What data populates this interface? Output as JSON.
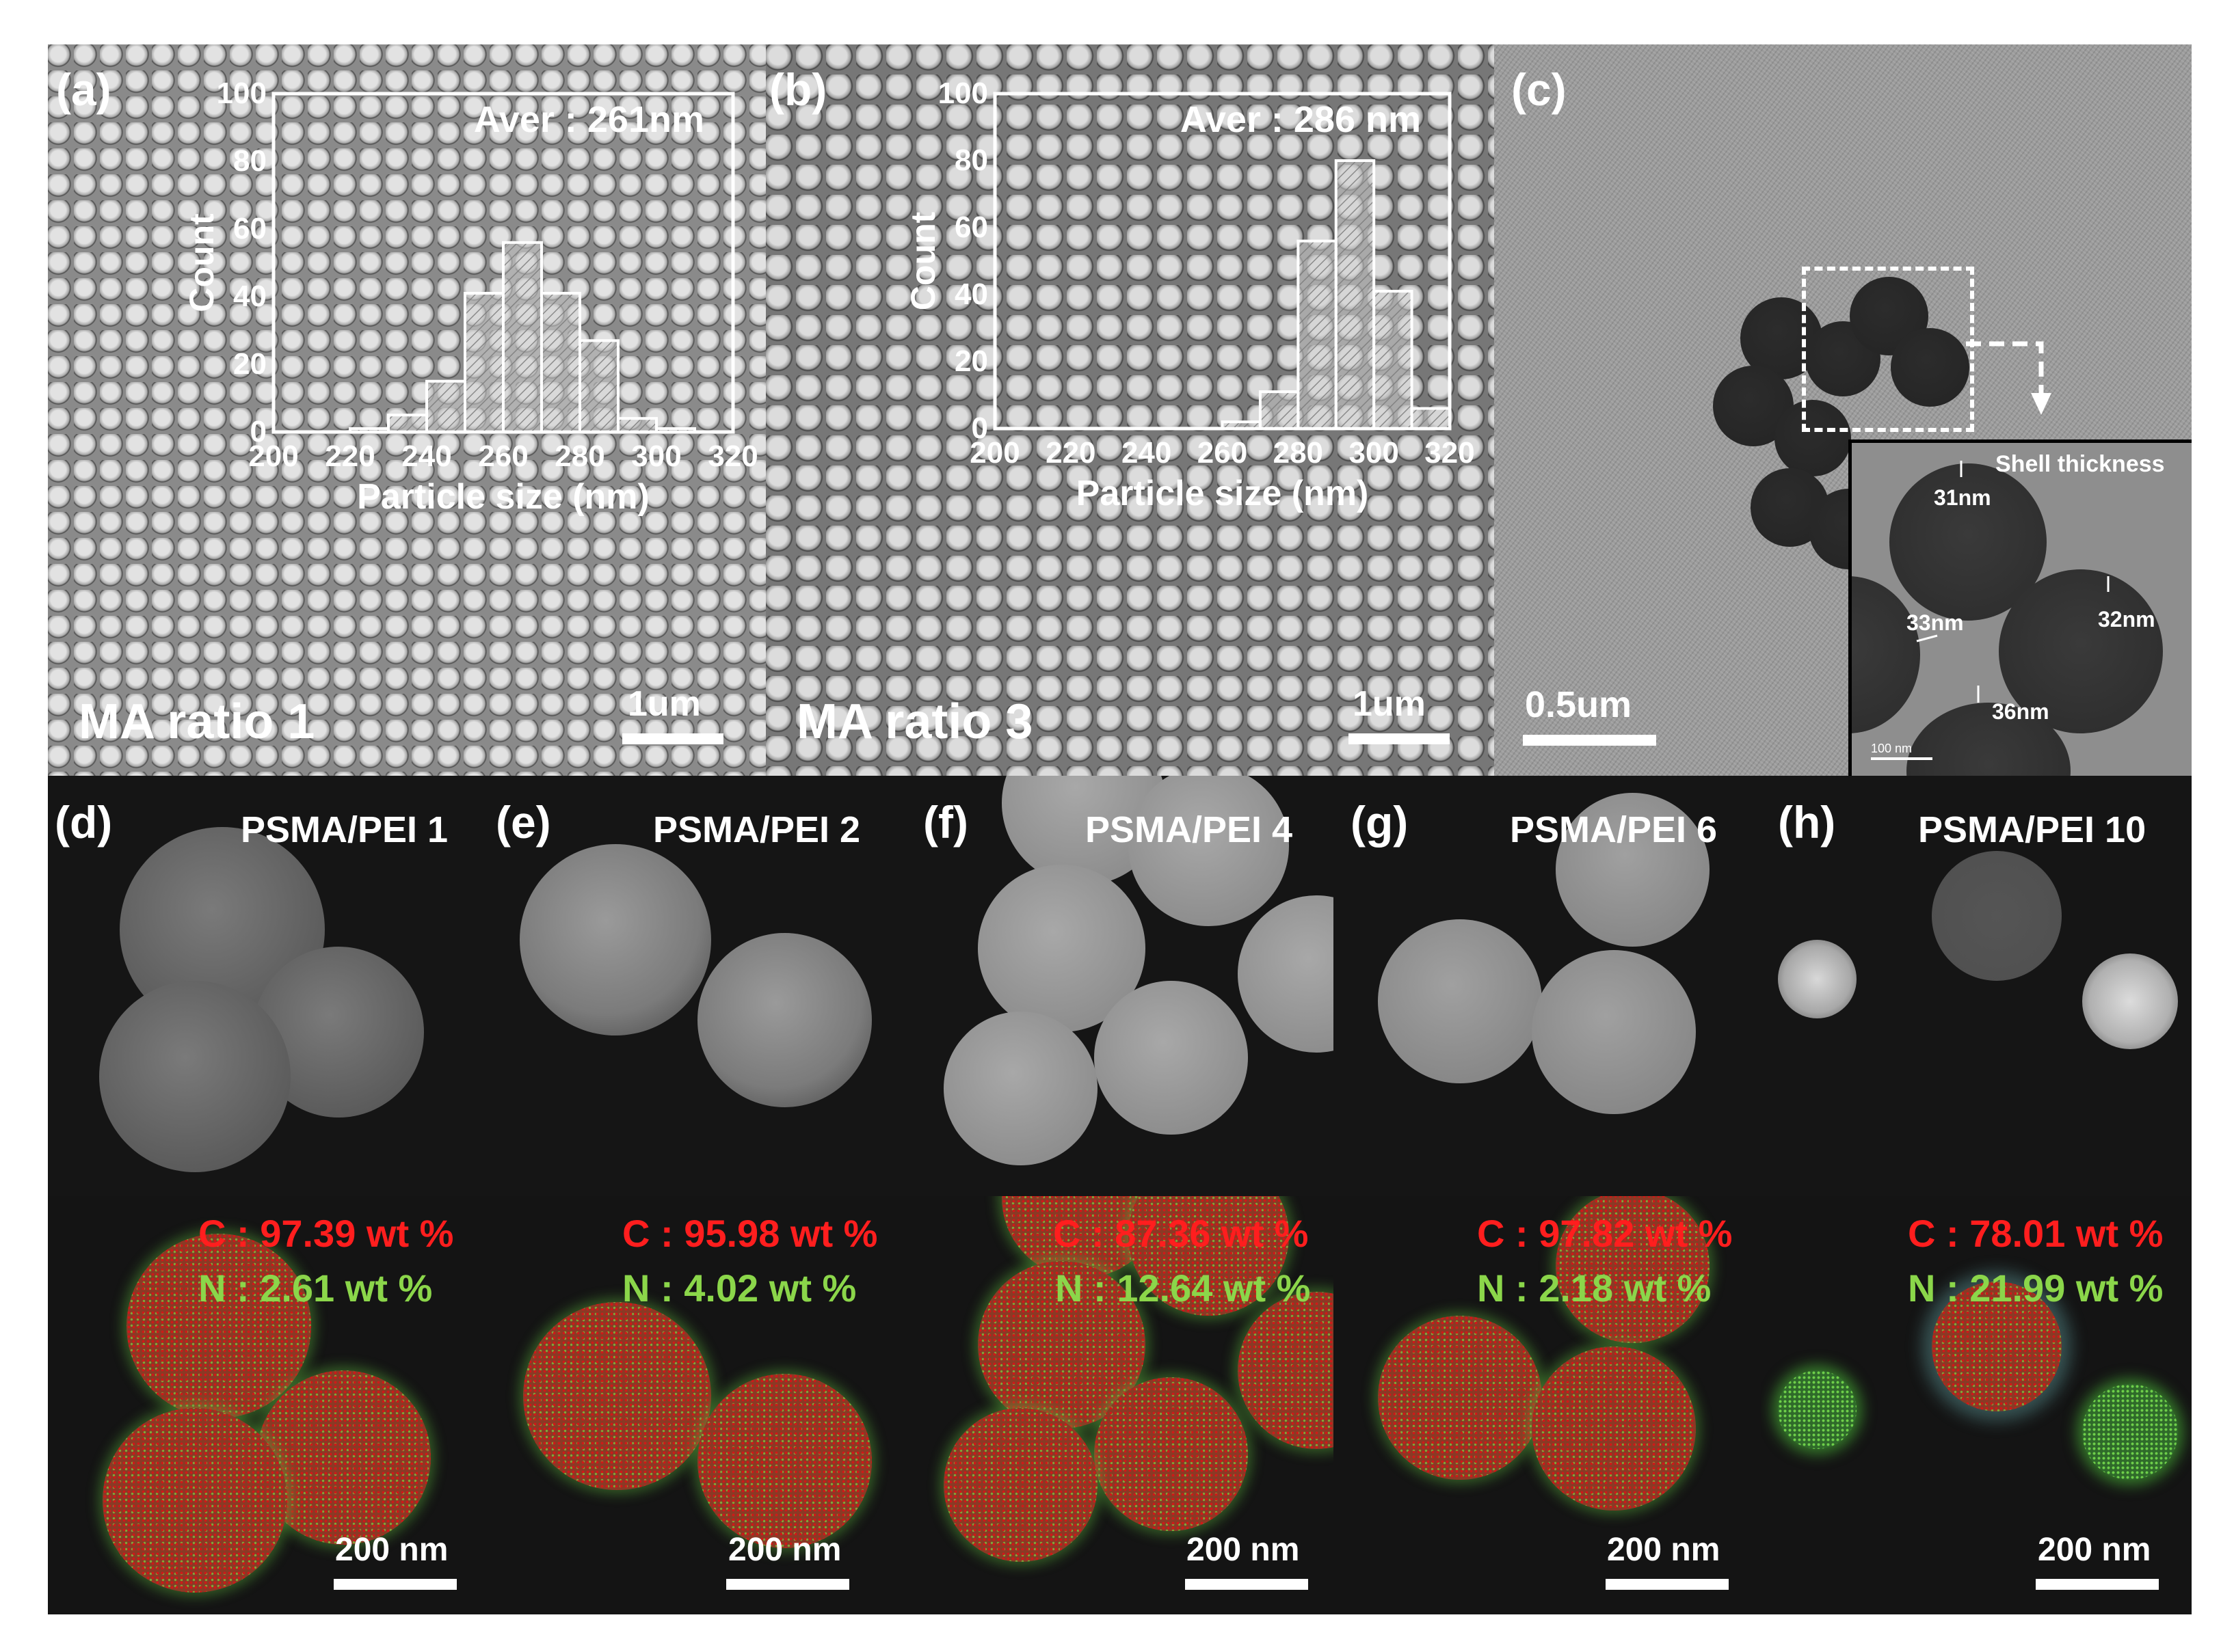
{
  "panel_a": {
    "label": "(a)",
    "sample": "MA ratio 1",
    "scale": "1um",
    "inset": {
      "aver": "Aver : 261nm",
      "ylabel": "Count",
      "xlabel": "Particle size (nm)",
      "y_ticks": [
        "0",
        "20",
        "40",
        "60",
        "80",
        "100"
      ],
      "x_ticks": [
        "200",
        "220",
        "240",
        "260",
        "280",
        "300",
        "320"
      ]
    }
  },
  "panel_b": {
    "label": "(b)",
    "sample": "MA ratio 3",
    "scale": "1um",
    "inset": {
      "aver": "Aver : 286 nm",
      "ylabel": "Count",
      "xlabel": "Particle size (nm)",
      "y_ticks": [
        "0",
        "20",
        "40",
        "60",
        "80",
        "100"
      ],
      "x_ticks": [
        "200",
        "220",
        "240",
        "260",
        "280",
        "300",
        "320"
      ]
    }
  },
  "panel_c": {
    "label": "(c)",
    "scale": "0.5um",
    "inset": {
      "title": "Shell thickness",
      "m1": "31nm",
      "m2": "33nm",
      "m3": "32nm",
      "m4": "36nm",
      "scale": "100 nm"
    }
  },
  "edx_panels": [
    {
      "label": "(d)",
      "sample": "PSMA/PEI 1",
      "c": "C : 97.39 wt %",
      "n": "N : 2.61 wt %",
      "scale": "200 nm"
    },
    {
      "label": "(e)",
      "sample": "PSMA/PEI 2",
      "c": "C : 95.98 wt %",
      "n": "N : 4.02 wt %",
      "scale": "200 nm"
    },
    {
      "label": "(f)",
      "sample": "PSMA/PEI 4",
      "c": "C : 87.36 wt %",
      "n": "N : 12.64 wt %",
      "scale": "200 nm"
    },
    {
      "label": "(g)",
      "sample": "PSMA/PEI 6",
      "c": "C : 97.82 wt %",
      "n": "N : 2.18 wt %",
      "scale": "200 nm"
    },
    {
      "label": "(h)",
      "sample": "PSMA/PEI 10",
      "c": "C : 78.01 wt %",
      "n": "N : 21.99 wt %",
      "scale": "200 nm"
    }
  ],
  "chart_data": [
    {
      "type": "bar",
      "xlabel": "Particle size (nm)",
      "ylabel": "Count",
      "xlim": [
        200,
        320
      ],
      "ylim": [
        0,
        100
      ],
      "bin_width": 10,
      "x": [
        225,
        235,
        245,
        255,
        265,
        275,
        285,
        295,
        305
      ],
      "values": [
        1,
        5,
        15,
        41,
        56,
        41,
        27,
        4,
        1
      ],
      "annotation": "Aver : 261nm"
    },
    {
      "type": "bar",
      "xlabel": "Particle size (nm)",
      "ylabel": "Count",
      "xlim": [
        200,
        320
      ],
      "ylim": [
        0,
        100
      ],
      "bin_width": 10,
      "x": [
        265,
        275,
        285,
        295,
        305,
        315
      ],
      "values": [
        2,
        11,
        56,
        80,
        41,
        6
      ],
      "annotation": "Aver : 286 nm"
    }
  ],
  "colors": {
    "carbon": "#ff1e1e",
    "nitrogen": "#8bd64a"
  }
}
